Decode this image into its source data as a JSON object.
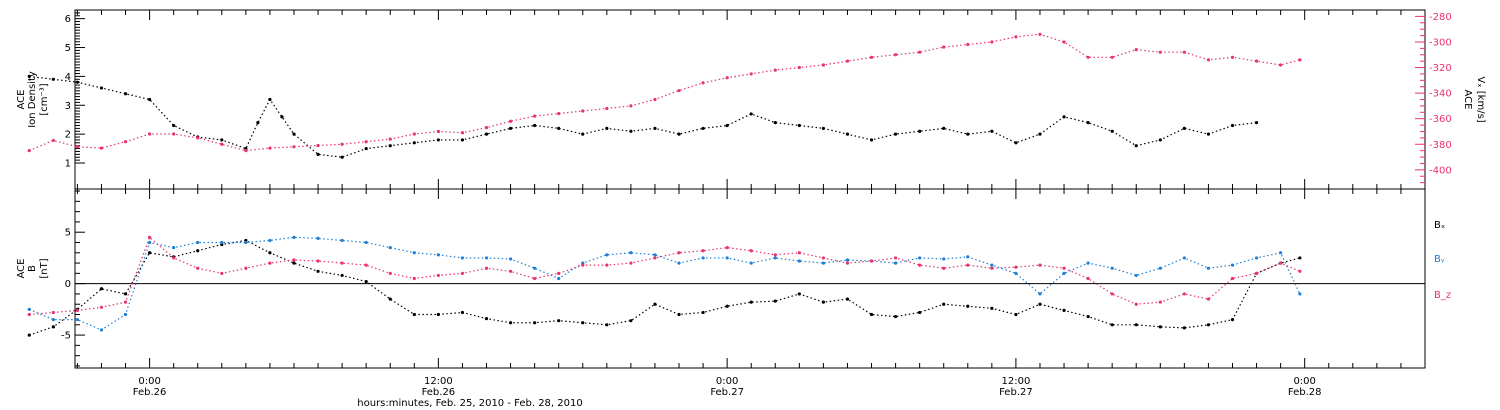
{
  "colors": {
    "black": "#000000",
    "pink": "#e8336b",
    "blue": "#1e7fd6"
  },
  "chart_data": [
    {
      "type": "scatter",
      "ylabel_left": [
        "ACE",
        "Ion Density",
        "[cm⁻³]"
      ],
      "ylabel_right": [
        "ACE",
        "Vₓ [km/s]"
      ],
      "y_left_ticks": [
        "1",
        "2",
        "3",
        "4",
        "5",
        "6"
      ],
      "y_right_ticks": [
        "-280",
        "-300",
        "-320",
        "-340",
        "-360",
        "-380",
        "-400"
      ],
      "ylim_left": [
        0.1,
        6.3
      ],
      "ylim_right": [
        -415,
        -275
      ],
      "series": [
        {
          "name": "Ion Density",
          "axis": "left",
          "color": "black",
          "points": [
            [
              -5,
              4.0
            ],
            [
              -4,
              3.9
            ],
            [
              -3,
              3.8
            ],
            [
              -2,
              3.6
            ],
            [
              -1,
              3.4
            ],
            [
              0,
              3.2
            ],
            [
              1,
              2.3
            ],
            [
              2,
              1.9
            ],
            [
              3,
              1.8
            ],
            [
              4,
              1.5
            ],
            [
              4.5,
              2.4
            ],
            [
              5,
              3.2
            ],
            [
              5.5,
              2.6
            ],
            [
              6,
              2.0
            ],
            [
              7,
              1.3
            ],
            [
              8,
              1.2
            ],
            [
              9,
              1.5
            ],
            [
              10,
              1.6
            ],
            [
              11,
              1.7
            ],
            [
              12,
              1.8
            ],
            [
              13,
              1.8
            ],
            [
              14,
              2.0
            ],
            [
              15,
              2.2
            ],
            [
              16,
              2.3
            ],
            [
              17,
              2.2
            ],
            [
              18,
              2.0
            ],
            [
              19,
              2.2
            ],
            [
              20,
              2.1
            ],
            [
              21,
              2.2
            ],
            [
              22,
              2.0
            ],
            [
              23,
              2.2
            ],
            [
              24,
              2.3
            ],
            [
              25,
              2.7
            ],
            [
              26,
              2.4
            ],
            [
              27,
              2.3
            ],
            [
              28,
              2.2
            ],
            [
              29,
              2.0
            ],
            [
              30,
              1.8
            ],
            [
              31,
              2.0
            ],
            [
              32,
              2.1
            ],
            [
              33,
              2.2
            ],
            [
              34,
              2.0
            ],
            [
              35,
              2.1
            ],
            [
              36,
              1.7
            ],
            [
              37,
              2.0
            ],
            [
              38,
              2.6
            ],
            [
              39,
              2.4
            ],
            [
              40,
              2.1
            ],
            [
              41,
              1.6
            ],
            [
              42,
              1.8
            ],
            [
              43,
              2.2
            ],
            [
              44,
              2.0
            ],
            [
              45,
              2.3
            ],
            [
              46,
              2.4
            ]
          ]
        },
        {
          "name": "Vₓ",
          "axis": "right",
          "color": "pink",
          "points": [
            [
              -5,
              -385
            ],
            [
              -4,
              -377
            ],
            [
              -3,
              -382
            ],
            [
              -2,
              -383
            ],
            [
              -1,
              -378
            ],
            [
              0,
              -372
            ],
            [
              1,
              -372
            ],
            [
              2,
              -375
            ],
            [
              3,
              -380
            ],
            [
              4,
              -385
            ],
            [
              5,
              -383
            ],
            [
              6,
              -382
            ],
            [
              7,
              -381
            ],
            [
              8,
              -380
            ],
            [
              9,
              -378
            ],
            [
              10,
              -376
            ],
            [
              11,
              -372
            ],
            [
              12,
              -370
            ],
            [
              13,
              -371
            ],
            [
              14,
              -367
            ],
            [
              15,
              -362
            ],
            [
              16,
              -358
            ],
            [
              17,
              -356
            ],
            [
              18,
              -354
            ],
            [
              19,
              -352
            ],
            [
              20,
              -350
            ],
            [
              21,
              -345
            ],
            [
              22,
              -338
            ],
            [
              23,
              -332
            ],
            [
              24,
              -328
            ],
            [
              25,
              -325
            ],
            [
              26,
              -322
            ],
            [
              27,
              -320
            ],
            [
              28,
              -318
            ],
            [
              29,
              -315
            ],
            [
              30,
              -312
            ],
            [
              31,
              -310
            ],
            [
              32,
              -308
            ],
            [
              33,
              -304
            ],
            [
              34,
              -302
            ],
            [
              35,
              -300
            ],
            [
              36,
              -296
            ],
            [
              37,
              -294
            ],
            [
              38,
              -300
            ],
            [
              39,
              -312
            ],
            [
              40,
              -312
            ],
            [
              41,
              -306
            ],
            [
              42,
              -308
            ],
            [
              43,
              -308
            ],
            [
              44,
              -314
            ],
            [
              45,
              -312
            ],
            [
              46,
              -315
            ],
            [
              47,
              -318
            ],
            [
              47.8,
              -314
            ]
          ]
        }
      ]
    },
    {
      "type": "scatter",
      "ylabel_left": [
        "ACE",
        "B",
        "[nT]"
      ],
      "y_left_ticks": [
        "-5",
        "0",
        "5"
      ],
      "ylim": [
        -8.2,
        9.2
      ],
      "reference_line_y": 0,
      "legend": [
        "Bₓ",
        "Bᵧ",
        "B_z"
      ],
      "legend_placement": "right",
      "series": [
        {
          "name": "Bₓ",
          "color": "black",
          "points": [
            [
              -5,
              -5.0
            ],
            [
              -4,
              -4.2
            ],
            [
              -3,
              -2.5
            ],
            [
              -2,
              -0.5
            ],
            [
              -1,
              -1.0
            ],
            [
              0,
              3.0
            ],
            [
              1,
              2.6
            ],
            [
              2,
              3.2
            ],
            [
              3,
              3.8
            ],
            [
              4,
              4.2
            ],
            [
              5,
              3.0
            ],
            [
              6,
              2.0
            ],
            [
              7,
              1.2
            ],
            [
              8,
              0.8
            ],
            [
              9,
              0.2
            ],
            [
              10,
              -1.5
            ],
            [
              11,
              -3.0
            ],
            [
              12,
              -3.0
            ],
            [
              13,
              -2.8
            ],
            [
              14,
              -3.4
            ],
            [
              15,
              -3.8
            ],
            [
              16,
              -3.8
            ],
            [
              17,
              -3.6
            ],
            [
              18,
              -3.8
            ],
            [
              19,
              -4.0
            ],
            [
              20,
              -3.6
            ],
            [
              21,
              -2.0
            ],
            [
              22,
              -3.0
            ],
            [
              23,
              -2.8
            ],
            [
              24,
              -2.2
            ],
            [
              25,
              -1.8
            ],
            [
              26,
              -1.7
            ],
            [
              27,
              -1.0
            ],
            [
              28,
              -1.8
            ],
            [
              29,
              -1.5
            ],
            [
              30,
              -3.0
            ],
            [
              31,
              -3.2
            ],
            [
              32,
              -2.8
            ],
            [
              33,
              -2.0
            ],
            [
              34,
              -2.2
            ],
            [
              35,
              -2.4
            ],
            [
              36,
              -3.0
            ],
            [
              37,
              -2.0
            ],
            [
              38,
              -2.6
            ],
            [
              39,
              -3.2
            ],
            [
              40,
              -4.0
            ],
            [
              41,
              -4.0
            ],
            [
              42,
              -4.2
            ],
            [
              43,
              -4.3
            ],
            [
              44,
              -4.0
            ],
            [
              45,
              -3.5
            ],
            [
              46,
              1.0
            ],
            [
              47,
              2.0
            ],
            [
              47.8,
              2.5
            ]
          ]
        },
        {
          "name": "Bᵧ",
          "color": "blue",
          "points": [
            [
              -5,
              -2.5
            ],
            [
              -4,
              -3.5
            ],
            [
              -3,
              -3.5
            ],
            [
              -2,
              -4.5
            ],
            [
              -1,
              -3.0
            ],
            [
              0,
              4.0
            ],
            [
              1,
              3.5
            ],
            [
              2,
              4.0
            ],
            [
              3,
              4.0
            ],
            [
              4,
              4.0
            ],
            [
              5,
              4.2
            ],
            [
              6,
              4.5
            ],
            [
              7,
              4.4
            ],
            [
              8,
              4.2
            ],
            [
              9,
              4.0
            ],
            [
              10,
              3.5
            ],
            [
              11,
              3.0
            ],
            [
              12,
              2.8
            ],
            [
              13,
              2.5
            ],
            [
              14,
              2.5
            ],
            [
              15,
              2.4
            ],
            [
              16,
              1.5
            ],
            [
              17,
              0.5
            ],
            [
              18,
              2.0
            ],
            [
              19,
              2.8
            ],
            [
              20,
              3.0
            ],
            [
              21,
              2.8
            ],
            [
              22,
              2.0
            ],
            [
              23,
              2.5
            ],
            [
              24,
              2.5
            ],
            [
              25,
              2.0
            ],
            [
              26,
              2.5
            ],
            [
              27,
              2.2
            ],
            [
              28,
              2.0
            ],
            [
              29,
              2.3
            ],
            [
              30,
              2.2
            ],
            [
              31,
              2.0
            ],
            [
              32,
              2.5
            ],
            [
              33,
              2.4
            ],
            [
              34,
              2.6
            ],
            [
              35,
              1.8
            ],
            [
              36,
              1.0
            ],
            [
              37,
              -1.0
            ],
            [
              38,
              1.0
            ],
            [
              39,
              2.0
            ],
            [
              40,
              1.5
            ],
            [
              41,
              0.8
            ],
            [
              42,
              1.5
            ],
            [
              43,
              2.5
            ],
            [
              44,
              1.5
            ],
            [
              45,
              1.8
            ],
            [
              46,
              2.5
            ],
            [
              47,
              3.0
            ],
            [
              47.8,
              -1.0
            ]
          ]
        },
        {
          "name": "B_z",
          "color": "pink",
          "points": [
            [
              -5,
              -3.0
            ],
            [
              -4,
              -2.8
            ],
            [
              -3,
              -2.6
            ],
            [
              -2,
              -2.3
            ],
            [
              -1,
              -1.8
            ],
            [
              0,
              4.5
            ],
            [
              1,
              2.5
            ],
            [
              2,
              1.5
            ],
            [
              3,
              1.0
            ],
            [
              4,
              1.5
            ],
            [
              5,
              2.0
            ],
            [
              6,
              2.3
            ],
            [
              7,
              2.2
            ],
            [
              8,
              2.0
            ],
            [
              9,
              1.8
            ],
            [
              10,
              1.0
            ],
            [
              11,
              0.5
            ],
            [
              12,
              0.8
            ],
            [
              13,
              1.0
            ],
            [
              14,
              1.5
            ],
            [
              15,
              1.2
            ],
            [
              16,
              0.5
            ],
            [
              17,
              1.0
            ],
            [
              18,
              1.8
            ],
            [
              19,
              1.8
            ],
            [
              20,
              2.0
            ],
            [
              21,
              2.5
            ],
            [
              22,
              3.0
            ],
            [
              23,
              3.2
            ],
            [
              24,
              3.5
            ],
            [
              25,
              3.2
            ],
            [
              26,
              2.8
            ],
            [
              27,
              3.0
            ],
            [
              28,
              2.5
            ],
            [
              29,
              2.0
            ],
            [
              30,
              2.2
            ],
            [
              31,
              2.5
            ],
            [
              32,
              1.8
            ],
            [
              33,
              1.5
            ],
            [
              34,
              1.8
            ],
            [
              35,
              1.5
            ],
            [
              36,
              1.6
            ],
            [
              37,
              1.8
            ],
            [
              38,
              1.5
            ],
            [
              39,
              0.5
            ],
            [
              40,
              -1.0
            ],
            [
              41,
              -2.0
            ],
            [
              42,
              -1.8
            ],
            [
              43,
              -1.0
            ],
            [
              44,
              -1.5
            ],
            [
              45,
              0.5
            ],
            [
              46,
              1.0
            ],
            [
              47,
              2.0
            ],
            [
              47.8,
              1.2
            ]
          ]
        }
      ]
    }
  ],
  "x_axis": {
    "ticks": [
      {
        "time": "0:00",
        "date": "Feb.26",
        "hour": 0
      },
      {
        "time": "12:00",
        "date": "Feb.26",
        "hour": 12
      },
      {
        "time": "0:00",
        "date": "Feb.27",
        "hour": 24
      },
      {
        "time": "12:00",
        "date": "Feb.27",
        "hour": 36
      },
      {
        "time": "0:00",
        "date": "Feb.28",
        "hour": 48
      }
    ],
    "xlim_hours": [
      -3.1,
      53.0
    ],
    "xlabel": "hours:minutes, Feb. 25, 2010 - Feb. 28, 2010"
  }
}
